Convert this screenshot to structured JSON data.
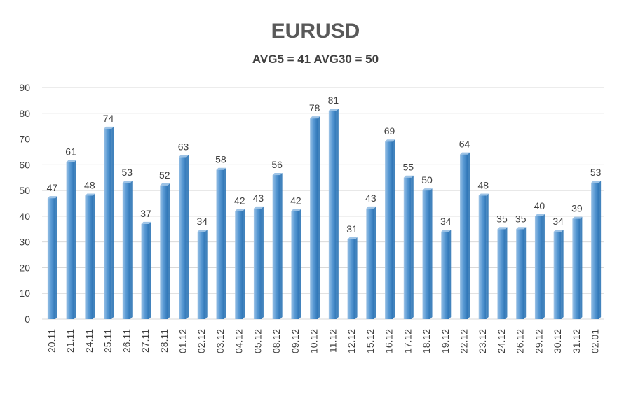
{
  "title": "EURUSD",
  "subtitle": "AVG5 = 41 AVG30 = 50",
  "colors": {
    "bar_fill": "#5b9bd5",
    "bar_light": "#9dc3e6",
    "bar_dark": "#2e75b6",
    "grid": "#d9d9d9",
    "text": "#404040"
  },
  "chart_data": {
    "type": "bar",
    "title": "EURUSD",
    "subtitle": "AVG5 = 41 AVG30 = 50",
    "xlabel": "",
    "ylabel": "",
    "ylim": [
      0,
      90
    ],
    "yticks": [
      0,
      10,
      20,
      30,
      40,
      50,
      60,
      70,
      80,
      90
    ],
    "grid": true,
    "legend": "none",
    "categories": [
      "20.11",
      "21.11",
      "24.11",
      "25.11",
      "26.11",
      "27.11",
      "28.11",
      "01.12",
      "02.12",
      "03.12",
      "04.12",
      "05.12",
      "08.12",
      "09.12",
      "10.12",
      "11.12",
      "12.12",
      "15.12",
      "16.12",
      "17.12",
      "18.12",
      "19.12",
      "22.12",
      "23.12",
      "24.12",
      "26.12",
      "29.12",
      "30.12",
      "31.12",
      "02.01"
    ],
    "values": [
      47,
      61,
      48,
      74,
      53,
      37,
      52,
      63,
      34,
      58,
      42,
      43,
      56,
      42,
      78,
      81,
      31,
      43,
      69,
      55,
      50,
      34,
      64,
      48,
      35,
      35,
      40,
      34,
      39,
      53
    ]
  }
}
